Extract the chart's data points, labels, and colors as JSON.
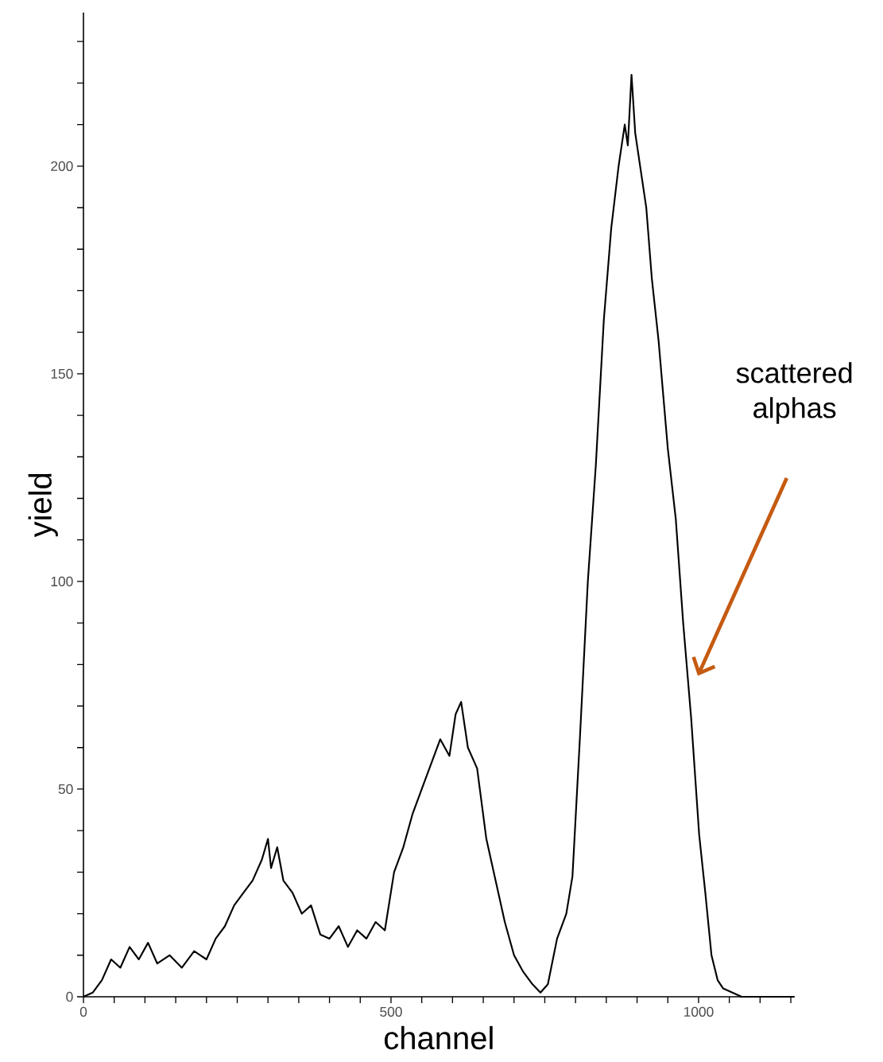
{
  "chart_data": {
    "type": "line",
    "xlabel": "channel",
    "ylabel": "yield",
    "annotations": [
      "scattered alphas"
    ],
    "xlim": [
      0,
      1156
    ],
    "ylim": [
      0,
      237
    ],
    "xticks": [
      0,
      {
        "value": 50,
        "label": null
      },
      {
        "value": 100,
        "label": null
      },
      {
        "value": 150,
        "label": null
      },
      {
        "value": 200,
        "label": null
      },
      {
        "value": 250,
        "label": null
      },
      {
        "value": 300,
        "label": null
      },
      {
        "value": 350,
        "label": null
      },
      {
        "value": 400,
        "label": null
      },
      {
        "value": 450,
        "label": null
      },
      500,
      {
        "value": 550,
        "label": null
      },
      {
        "value": 600,
        "label": null
      },
      {
        "value": 650,
        "label": null
      },
      {
        "value": 700,
        "label": null
      },
      {
        "value": 750,
        "label": null
      },
      {
        "value": 800,
        "label": null
      },
      {
        "value": 850,
        "label": null
      },
      {
        "value": 900,
        "label": null
      },
      {
        "value": 950,
        "label": null
      },
      1000,
      {
        "value": 1050,
        "label": null
      },
      {
        "value": 1100,
        "label": null
      },
      {
        "value": 1150,
        "label": null
      }
    ],
    "yticks": [
      0,
      {
        "value": 10,
        "label": null
      },
      {
        "value": 20,
        "label": null
      },
      {
        "value": 30,
        "label": null
      },
      {
        "value": 40,
        "label": null
      },
      50,
      {
        "value": 60,
        "label": null
      },
      {
        "value": 70,
        "label": null
      },
      {
        "value": 80,
        "label": null
      },
      {
        "value": 90,
        "label": null
      },
      100,
      {
        "value": 110,
        "label": null
      },
      {
        "value": 120,
        "label": null
      },
      {
        "value": 130,
        "label": null
      },
      {
        "value": 140,
        "label": null
      },
      150,
      {
        "value": 160,
        "label": null
      },
      {
        "value": 170,
        "label": null
      },
      {
        "value": 180,
        "label": null
      },
      {
        "value": 190,
        "label": null
      },
      200,
      {
        "value": 210,
        "label": null
      },
      {
        "value": 220,
        "label": null
      },
      {
        "value": 230,
        "label": null
      }
    ],
    "series": [
      {
        "color": "#000000",
        "x": [
          0,
          15,
          30,
          45,
          60,
          75,
          90,
          105,
          120,
          140,
          160,
          180,
          200,
          215,
          230,
          245,
          260,
          275,
          290,
          300,
          305,
          315,
          325,
          340,
          355,
          370,
          385,
          400,
          415,
          430,
          445,
          460,
          475,
          490,
          505,
          520,
          535,
          550,
          565,
          580,
          595,
          605,
          614,
          625,
          640,
          655,
          670,
          685,
          700,
          715,
          730,
          743,
          755,
          770,
          785,
          795,
          807,
          820,
          833,
          846,
          858,
          870,
          880,
          885,
          891,
          897,
          905,
          915,
          924,
          935,
          950,
          963,
          975,
          988,
          1001,
          1011,
          1021,
          1031,
          1040,
          1055,
          1070,
          1100,
          1156
        ],
        "values": [
          0,
          1,
          4,
          9,
          7,
          12,
          9,
          13,
          8,
          10,
          7,
          11,
          9,
          14,
          17,
          22,
          25,
          28,
          33,
          38,
          31,
          36,
          28,
          25,
          20,
          22,
          15,
          14,
          17,
          12,
          16,
          14,
          18,
          16,
          30,
          36,
          44,
          50,
          56,
          62,
          58,
          68,
          71,
          60,
          55,
          38,
          28,
          18,
          10,
          6,
          3,
          1,
          3,
          14,
          20,
          29,
          62,
          100,
          128,
          163,
          185,
          200,
          210,
          205,
          222,
          208,
          200,
          190,
          173,
          158,
          132,
          115,
          90,
          67,
          39,
          25,
          10,
          4,
          2,
          1,
          0,
          0,
          0
        ]
      }
    ]
  }
}
